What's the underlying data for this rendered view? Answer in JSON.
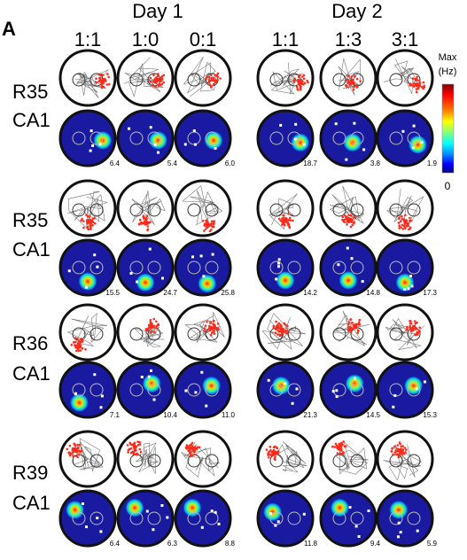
{
  "panel_letter": "A",
  "days": [
    {
      "label": "Day 1",
      "ratios": [
        "1:1",
        "1:0",
        "0:1"
      ]
    },
    {
      "label": "Day 2",
      "ratios": [
        "1:1",
        "1:3",
        "3:1"
      ]
    }
  ],
  "rows": [
    {
      "rat": "R35",
      "region": "CA1",
      "peaks": [
        "6.4",
        "5.4",
        "6.0",
        "18.7",
        "3.8",
        "1.9"
      ]
    },
    {
      "rat": "R35",
      "region": "CA1",
      "peaks": [
        "15.5",
        "24.7",
        "25.8",
        "14.2",
        "14.8",
        "17.3"
      ]
    },
    {
      "rat": "R36",
      "region": "CA1",
      "peaks": [
        "7.1",
        "10.4",
        "11.0",
        "21.3",
        "14.5",
        "15.3"
      ]
    },
    {
      "rat": "R39",
      "region": "CA1",
      "peaks": [
        "6.4",
        "6.3",
        "8.8",
        "11.8",
        "9.4",
        "5.9"
      ]
    }
  ],
  "colorbar": {
    "top_label_line1": "Max",
    "top_label_line2": "(Hz)",
    "bottom_label": "0",
    "colors": [
      "#7f0000",
      "#ff0000",
      "#ff8000",
      "#ffff00",
      "#80ff80",
      "#00ffff",
      "#0080ff",
      "#0000ff",
      "#00007f"
    ]
  },
  "colors": {
    "spike_red": "#ff2a1a",
    "trajectory_gray": "#777777",
    "map_blue": "#1a1aa0"
  }
}
